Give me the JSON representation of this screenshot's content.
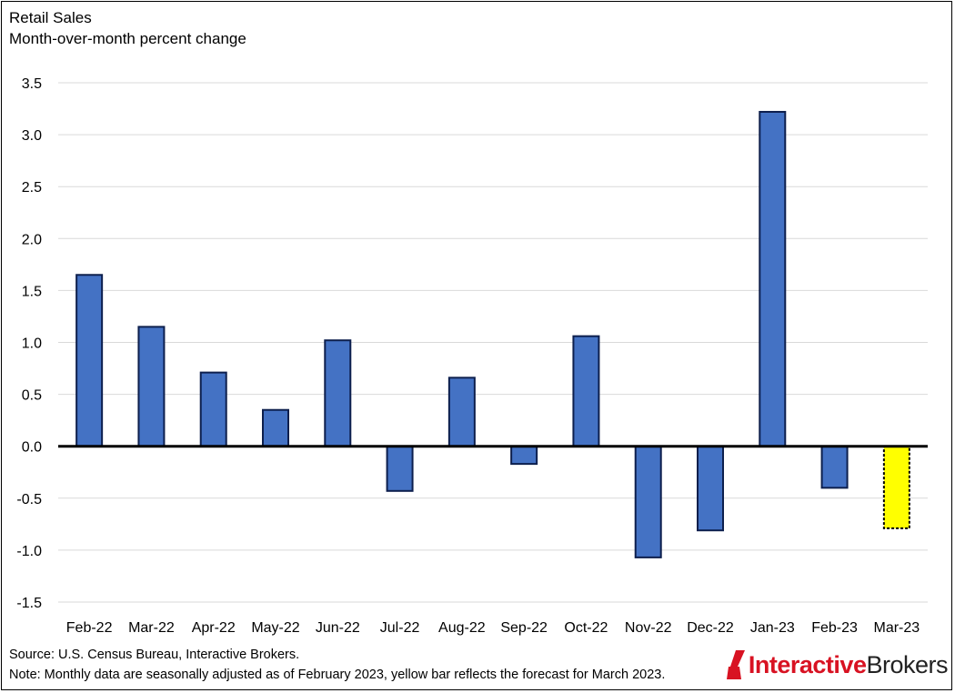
{
  "chart_data": {
    "type": "bar",
    "title": "Retail Sales",
    "subtitle": "Month-over-month percent change",
    "xlabel": "",
    "ylabel": "",
    "ylim": [
      -1.5,
      3.5
    ],
    "yticks": [
      "3.5",
      "3.0",
      "2.5",
      "2.0",
      "1.5",
      "1.0",
      "0.5",
      "0.0",
      "-0.5",
      "-1.0",
      "-1.5"
    ],
    "ytick_values": [
      3.5,
      3.0,
      2.5,
      2.0,
      1.5,
      1.0,
      0.5,
      0.0,
      -0.5,
      -1.0,
      -1.5
    ],
    "grid": true,
    "categories": [
      "Feb-22",
      "Mar-22",
      "Apr-22",
      "May-22",
      "Jun-22",
      "Jul-22",
      "Aug-22",
      "Sep-22",
      "Oct-22",
      "Nov-22",
      "Dec-22",
      "Jan-23",
      "Feb-23",
      "Mar-23"
    ],
    "values": [
      1.65,
      1.15,
      0.71,
      0.35,
      1.02,
      -0.43,
      0.66,
      -0.17,
      1.06,
      -1.07,
      -0.81,
      3.22,
      -0.4,
      -0.79
    ],
    "forecast_index": 13,
    "colors": {
      "bar_fill": "#4472c4",
      "bar_stroke": "#0d1f4d",
      "forecast_fill": "#ffff00",
      "forecast_stroke": "#000000",
      "grid": "#d9d9d9",
      "zero_line": "#000000"
    }
  },
  "footer": {
    "source": "Source: U.S. Census Bureau, Interactive Brokers.",
    "note": "Note: Monthly data are seasonally adjusted as of February 2023, yellow bar reflects the forecast for March 2023."
  },
  "logo": {
    "part1": "Interactive",
    "part2": "Brokers",
    "icon": "interactive-brokers-logo-icon",
    "colors": {
      "red": "#d81222",
      "dark": "#222222"
    }
  }
}
